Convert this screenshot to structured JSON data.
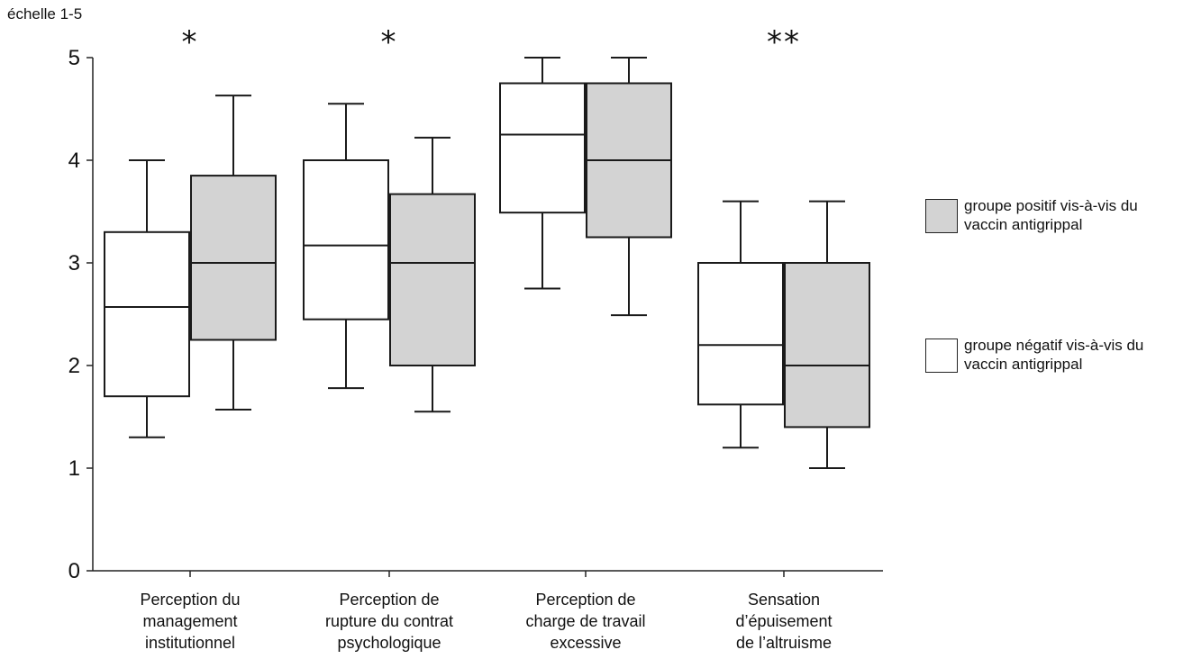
{
  "chart_data": {
    "type": "boxplot",
    "ylabel": "échelle 1-5",
    "ylim": [
      0,
      5
    ],
    "yticks": [
      "0",
      "1",
      "2",
      "3",
      "4",
      "5"
    ],
    "categories": [
      {
        "lines": [
          "Perception du",
          "management",
          "institutionnel"
        ],
        "significance": "*"
      },
      {
        "lines": [
          "Perception de",
          "rupture du contrat",
          "psychologique"
        ],
        "significance": "*"
      },
      {
        "lines": [
          "Perception de",
          "charge de travail",
          "excessive"
        ],
        "significance": ""
      },
      {
        "lines": [
          "Sensation",
          "d’épuisement",
          "de l’altruisme"
        ],
        "significance": "**"
      }
    ],
    "series": [
      {
        "name": "groupe négatif vis-à-vis du vaccin antigrippal",
        "color": "#ffffff",
        "boxes": [
          {
            "min": 1.3,
            "q1": 1.7,
            "median": 2.57,
            "q3": 3.3,
            "max": 4.0
          },
          {
            "min": 1.78,
            "q1": 2.45,
            "median": 3.17,
            "q3": 4.0,
            "max": 4.55
          },
          {
            "min": 2.75,
            "q1": 3.49,
            "median": 4.25,
            "q3": 4.75,
            "max": 5.0
          },
          {
            "min": 1.2,
            "q1": 1.62,
            "median": 2.2,
            "q3": 3.0,
            "max": 3.6
          }
        ]
      },
      {
        "name": "groupe positif vis-à-vis du vaccin antigrippal",
        "color": "#d3d3d3",
        "boxes": [
          {
            "min": 1.57,
            "q1": 2.25,
            "median": 3.0,
            "q3": 3.85,
            "max": 4.63
          },
          {
            "min": 1.55,
            "q1": 2.0,
            "median": 3.0,
            "q3": 3.67,
            "max": 4.22
          },
          {
            "min": 2.49,
            "q1": 3.25,
            "median": 4.0,
            "q3": 4.75,
            "max": 5.0
          },
          {
            "min": 1.0,
            "q1": 1.4,
            "median": 2.0,
            "q3": 3.0,
            "max": 3.6
          }
        ]
      }
    ],
    "legend": [
      {
        "label": "groupe positif vis-à-vis du vaccin antigrippal",
        "color": "#d3d3d3"
      },
      {
        "label": "groupe négatif vis-à-vis du vaccin antigrippal",
        "color": "#ffffff"
      }
    ],
    "legend_position": "right"
  }
}
